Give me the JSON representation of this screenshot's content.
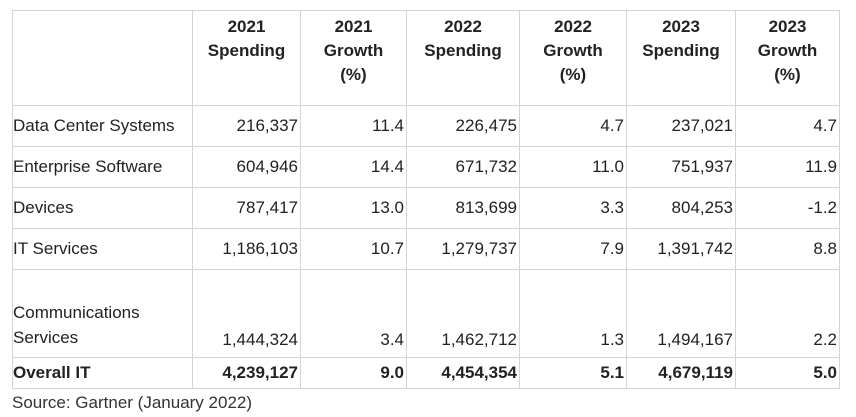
{
  "table": {
    "headers": [
      {
        "line1": "",
        "line2": "",
        "line3": ""
      },
      {
        "line1": "2021",
        "line2": "Spending",
        "line3": ""
      },
      {
        "line1": "2021",
        "line2": "Growth",
        "line3": "(%)"
      },
      {
        "line1": "2022",
        "line2": "Spending",
        "line3": ""
      },
      {
        "line1": "2022",
        "line2": "Growth",
        "line3": "(%)"
      },
      {
        "line1": "2023",
        "line2": "Spending",
        "line3": ""
      },
      {
        "line1": "2023",
        "line2": "Growth",
        "line3": "(%)"
      }
    ],
    "rows": [
      [
        "Data Center Systems",
        "216,337",
        "11.4",
        "226,475",
        "4.7",
        "237,021",
        "4.7"
      ],
      [
        "Enterprise Software",
        "604,946",
        "14.4",
        "671,732",
        "11.0",
        "751,937",
        "11.9"
      ],
      [
        "Devices",
        "787,417",
        "13.0",
        "813,699",
        "3.3",
        "804,253",
        "-1.2"
      ],
      [
        "IT Services",
        "1,186,103",
        "10.7",
        "1,279,737",
        "7.9",
        "1,391,742",
        "8.8"
      ],
      [
        "Communications Services",
        "1,444,324",
        "3.4",
        "1,462,712",
        "1.3",
        "1,494,167",
        "2.2"
      ]
    ],
    "comm_label": {
      "line1": "Communications",
      "line2": "Services"
    },
    "total": [
      "Overall IT",
      "4,239,127",
      "9.0",
      "4,454,354",
      "5.1",
      "4,679,119",
      "5.0"
    ]
  },
  "source": "Source: Gartner (January 2022)"
}
